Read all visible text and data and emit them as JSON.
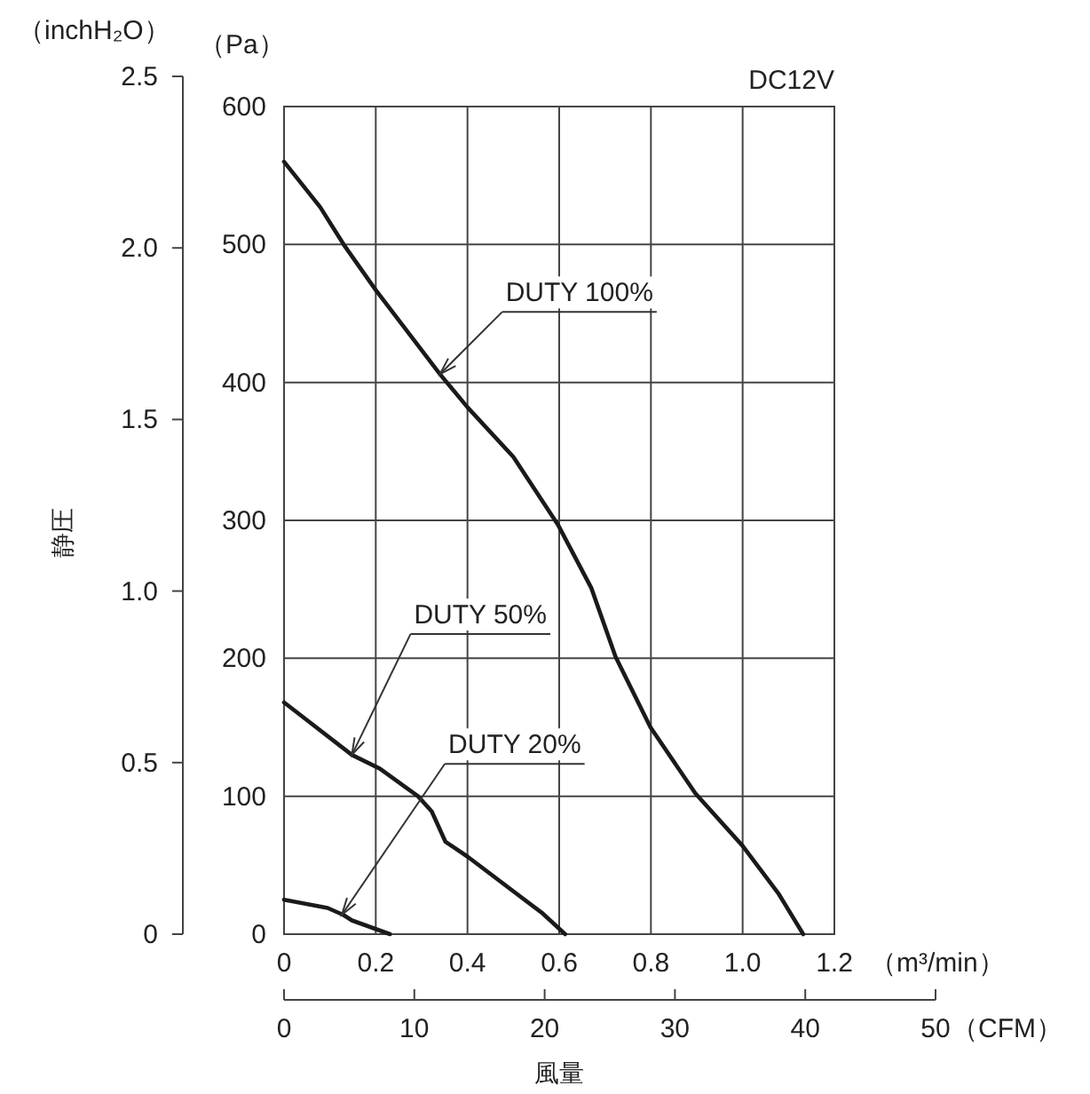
{
  "chart_data": {
    "type": "line",
    "title": "DC12V",
    "xlabel": "風量",
    "y2label": "静圧",
    "annotations": [
      "（Pa）",
      "（inchH₂O）",
      "（m³/min）",
      "（CFM）",
      {
        "text": "DUTY 100%",
        "x": 0.34,
        "y": 406
      },
      {
        "text": "DUTY 50%",
        "x": 0.148,
        "y": 130
      },
      {
        "text": "DUTY 20%",
        "x": 0.126,
        "y": 14
      }
    ],
    "series": [
      {
        "color": "#1a1a1a",
        "x": [
          0,
          0.079,
          0.13,
          0.2,
          0.34,
          0.4,
          0.5,
          0.597,
          0.67,
          0.723,
          0.799,
          0.897,
          1.0,
          1.079,
          1.132
        ],
        "values": [
          560,
          527,
          500,
          467,
          406,
          382,
          346,
          297,
          251,
          201,
          150,
          102,
          64,
          29,
          0
        ]
      },
      {
        "color": "#1a1a1a",
        "x": [
          0,
          0.148,
          0.209,
          0.292,
          0.322,
          0.352,
          0.401,
          0.564,
          0.613
        ],
        "values": [
          168,
          130,
          120,
          100,
          89,
          67,
          56,
          15,
          0
        ]
      },
      {
        "color": "#1a1a1a",
        "x": [
          0,
          0.095,
          0.129,
          0.148,
          0.231
        ],
        "values": [
          25,
          19,
          14,
          10,
          0
        ]
      }
    ],
    "xlim": [
      0,
      1.2
    ],
    "xticks": [
      0,
      0.2,
      0.4,
      0.6,
      0.8,
      {
        "value": 1,
        "label": "1.0"
      },
      1.2
    ],
    "ylim": [
      0,
      600
    ],
    "yticks": [
      0,
      100,
      200,
      300,
      400,
      500,
      600
    ],
    "y2lim": [
      0,
      2.5
    ],
    "y2ticks": [
      0,
      0.5,
      {
        "value": 1,
        "label": "1.0"
      },
      1.5,
      {
        "value": 2,
        "label": "2.0"
      },
      2.5
    ],
    "x2lim": [
      0,
      50
    ],
    "x2ticks": [
      0,
      10,
      20,
      30,
      40,
      50
    ],
    "grid": true
  }
}
